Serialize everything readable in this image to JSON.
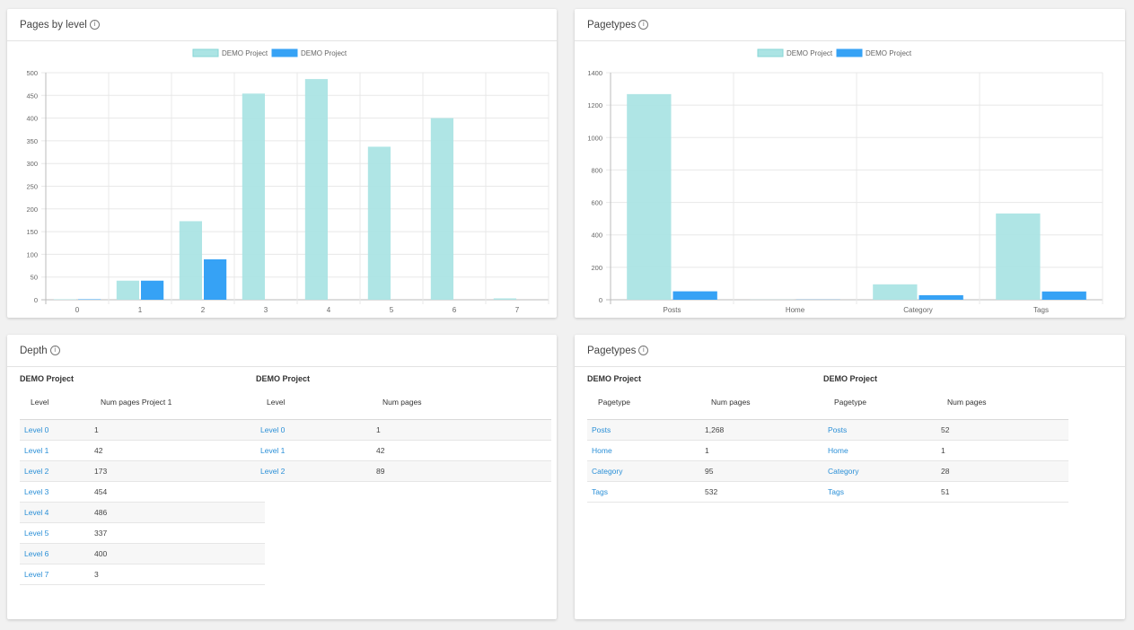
{
  "panels": {
    "pages_by_level": {
      "title": "Pages by level",
      "info_glyph": "i",
      "legend": [
        "DEMO Project",
        "DEMO Project"
      ]
    },
    "pagetypes_chart": {
      "title": "Pagetypes",
      "info_glyph": "i",
      "legend": [
        "DEMO Project",
        "DEMO Project"
      ]
    },
    "depth": {
      "title": "Depth",
      "info_glyph": "i",
      "tables": [
        {
          "project": "DEMO Project",
          "headers": [
            "Level",
            "Num pages Project 1"
          ],
          "rows": [
            [
              "Level 0",
              "1"
            ],
            [
              "Level 1",
              "42"
            ],
            [
              "Level 2",
              "173"
            ],
            [
              "Level 3",
              "454"
            ],
            [
              "Level 4",
              "486"
            ],
            [
              "Level 5",
              "337"
            ],
            [
              "Level 6",
              "400"
            ],
            [
              "Level 7",
              "3"
            ]
          ]
        },
        {
          "project": "DEMO Project",
          "headers": [
            "Level",
            "Num pages"
          ],
          "rows": [
            [
              "Level 0",
              "1"
            ],
            [
              "Level 1",
              "42"
            ],
            [
              "Level 2",
              "89"
            ]
          ]
        }
      ]
    },
    "pagetypes_table": {
      "title": "Pagetypes",
      "info_glyph": "i",
      "tables": [
        {
          "project": "DEMO Project",
          "headers": [
            "Pagetype",
            "Num pages"
          ],
          "rows": [
            [
              "Posts",
              "1,268"
            ],
            [
              "Home",
              "1"
            ],
            [
              "Category",
              "95"
            ],
            [
              "Tags",
              "532"
            ]
          ]
        },
        {
          "project": "DEMO Project",
          "headers": [
            "Pagetype",
            "Num pages"
          ],
          "rows": [
            [
              "Posts",
              "52"
            ],
            [
              "Home",
              "1"
            ],
            [
              "Category",
              "28"
            ],
            [
              "Tags",
              "51"
            ]
          ]
        }
      ]
    }
  },
  "colors": {
    "series1": "#abe4e4",
    "series2": "#36a2f5",
    "link": "#2a8fd7"
  },
  "chart_data": [
    {
      "type": "bar",
      "title": "Pages by level",
      "categories": [
        "0",
        "1",
        "2",
        "3",
        "4",
        "5",
        "6",
        "7"
      ],
      "series": [
        {
          "name": "DEMO Project",
          "values": [
            1,
            42,
            173,
            454,
            486,
            337,
            400,
            3
          ]
        },
        {
          "name": "DEMO Project",
          "values": [
            1,
            42,
            89,
            0,
            0,
            0,
            0,
            0
          ]
        }
      ],
      "yticks": [
        0,
        50,
        100,
        150,
        200,
        250,
        300,
        350,
        400,
        450,
        500
      ],
      "ylim": [
        0,
        500
      ],
      "grid": true,
      "legend_position": "top-center"
    },
    {
      "type": "bar",
      "title": "Pagetypes",
      "categories": [
        "Posts",
        "Home",
        "Category",
        "Tags"
      ],
      "series": [
        {
          "name": "DEMO Project",
          "values": [
            1268,
            1,
            95,
            532
          ]
        },
        {
          "name": "DEMO Project",
          "values": [
            52,
            1,
            28,
            51
          ]
        }
      ],
      "yticks": [
        0,
        200,
        400,
        600,
        800,
        1000,
        1200,
        1400
      ],
      "ylim": [
        0,
        1400
      ],
      "grid": true,
      "legend_position": "top-center"
    }
  ]
}
